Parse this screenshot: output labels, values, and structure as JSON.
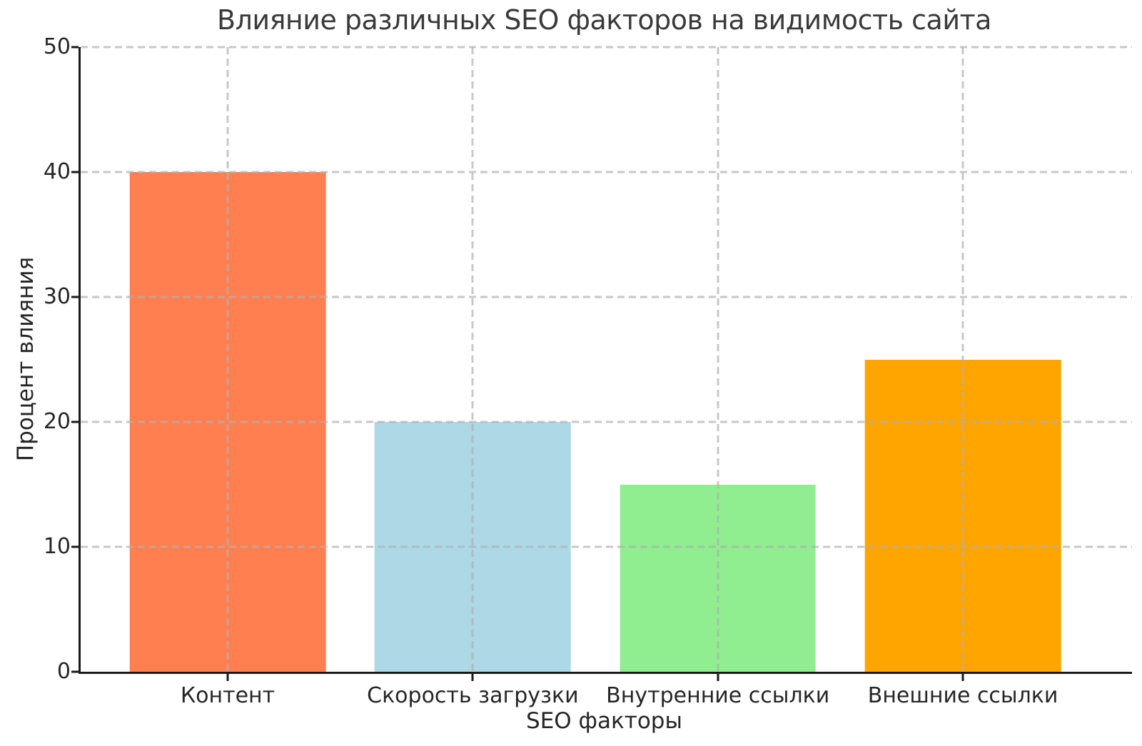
{
  "chart_data": {
    "type": "bar",
    "title": "Влияние различных SEO факторов на видимость сайта",
    "xlabel": "SEO факторы",
    "ylabel": "Процент влияния",
    "categories": [
      "Контент",
      "Скорость загрузки",
      "Внутренние ссылки",
      "Внешние ссылки"
    ],
    "values": [
      40,
      20,
      15,
      25
    ],
    "bar_colors": [
      "#ff7f50",
      "#add8e6",
      "#90ee90",
      "#ffa500"
    ],
    "ylim": [
      0,
      50
    ],
    "yticks": [
      0,
      10,
      20,
      30,
      40,
      50
    ],
    "grid": "dashed, both axes, drawn above bars",
    "legend_position": "none"
  },
  "colors": {
    "background": "#ffffff",
    "axis": "#1a1a1a",
    "grid": "#b0b0b0",
    "title_text": "#3a3a3a",
    "tick_text": "#262626"
  }
}
